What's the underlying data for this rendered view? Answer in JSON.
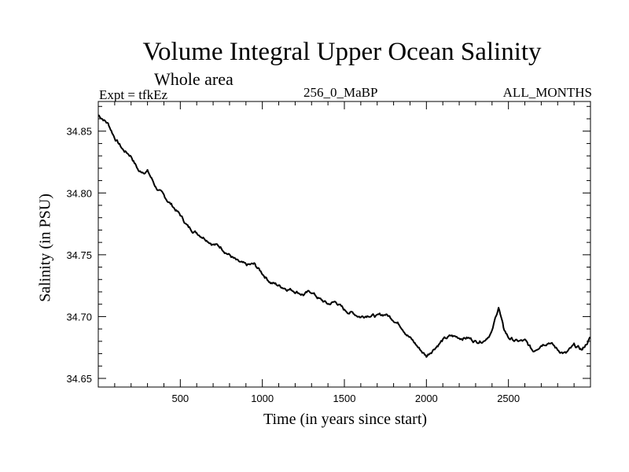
{
  "chart_data": {
    "type": "line",
    "title": "Volume Integral Upper Ocean Salinity",
    "subtitle": "Whole area",
    "annotations": {
      "left": "Expt = tfkEz",
      "center": "256_0_MaBP",
      "right": "ALL_MONTHS"
    },
    "xlabel": "Time (in years since start)",
    "ylabel": "Salinity (in PSU)",
    "xlim": [
      0,
      3000
    ],
    "ylim": [
      34.643,
      34.874
    ],
    "x_ticks": [
      "500",
      "1000",
      "1500",
      "2000",
      "2500"
    ],
    "y_ticks": [
      "34.65",
      "34.70",
      "34.75",
      "34.80",
      "34.85"
    ],
    "grid": false,
    "series": [
      {
        "x": [
          0,
          30,
          60,
          100,
          150,
          200,
          250,
          300,
          350,
          400,
          450,
          500,
          550,
          600,
          650,
          700,
          750,
          800,
          850,
          900,
          950,
          1000,
          1050,
          1100,
          1150,
          1200,
          1250,
          1300,
          1350,
          1400,
          1450,
          1500,
          1550,
          1600,
          1650,
          1700,
          1750,
          1800,
          1850,
          1900,
          1950,
          2000,
          2050,
          2100,
          2150,
          2200,
          2250,
          2300,
          2350,
          2400,
          2440,
          2470,
          2500,
          2550,
          2600,
          2650,
          2700,
          2750,
          2800,
          2850,
          2900,
          2950,
          3000
        ],
        "y": [
          34.863,
          34.86,
          34.856,
          34.845,
          34.835,
          34.83,
          34.817,
          34.818,
          34.805,
          34.797,
          34.79,
          34.782,
          34.772,
          34.768,
          34.764,
          34.759,
          34.756,
          34.75,
          34.744,
          34.741,
          34.742,
          34.735,
          34.728,
          34.725,
          34.723,
          34.721,
          34.718,
          34.72,
          34.714,
          34.71,
          34.712,
          34.705,
          34.703,
          34.7,
          34.702,
          34.7,
          34.702,
          34.698,
          34.692,
          34.683,
          34.675,
          34.668,
          34.675,
          34.681,
          34.684,
          34.683,
          34.683,
          34.68,
          34.681,
          34.688,
          34.708,
          34.69,
          34.683,
          34.68,
          34.68,
          34.672,
          34.678,
          34.68,
          34.673,
          34.67,
          34.676,
          34.673,
          34.683
        ]
      }
    ]
  }
}
